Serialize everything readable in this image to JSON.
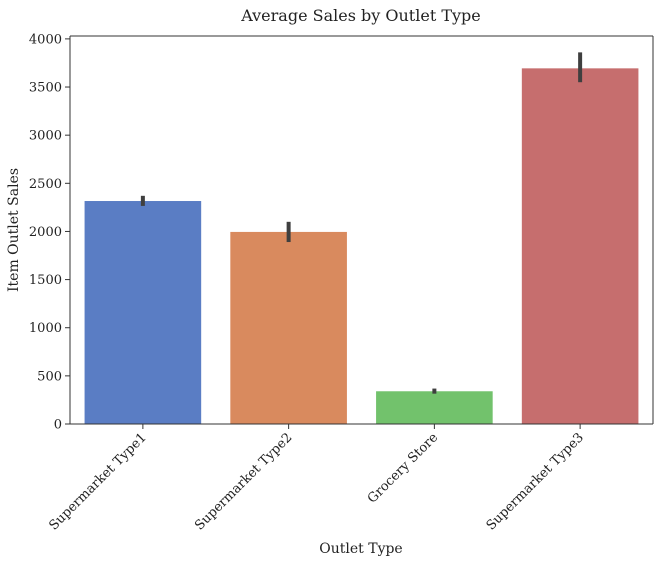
{
  "chart_data": {
    "type": "bar",
    "title": "Average Sales by Outlet Type",
    "xlabel": "Outlet Type",
    "ylabel": "Item Outlet Sales",
    "categories": [
      "Supermarket Type1",
      "Supermarket Type2",
      "Grocery Store",
      "Supermarket Type3"
    ],
    "values": [
      2316,
      1995,
      340,
      3694
    ],
    "error_low": [
      2265,
      1890,
      315,
      3550
    ],
    "error_high": [
      2370,
      2100,
      368,
      3860
    ],
    "colors": [
      "#5a7dc4",
      "#d98a5e",
      "#72c26c",
      "#c66e6e"
    ],
    "error_color": "#3f3f3f",
    "ylim": [
      0,
      4030
    ],
    "yticks": [
      0,
      500,
      1000,
      1500,
      2000,
      2500,
      3000,
      3500,
      4000
    ],
    "ytick_labels": [
      "0",
      "500",
      "1000",
      "1500",
      "2000",
      "2500",
      "3000",
      "3500",
      "4000"
    ],
    "grid": false,
    "legend": "none"
  }
}
